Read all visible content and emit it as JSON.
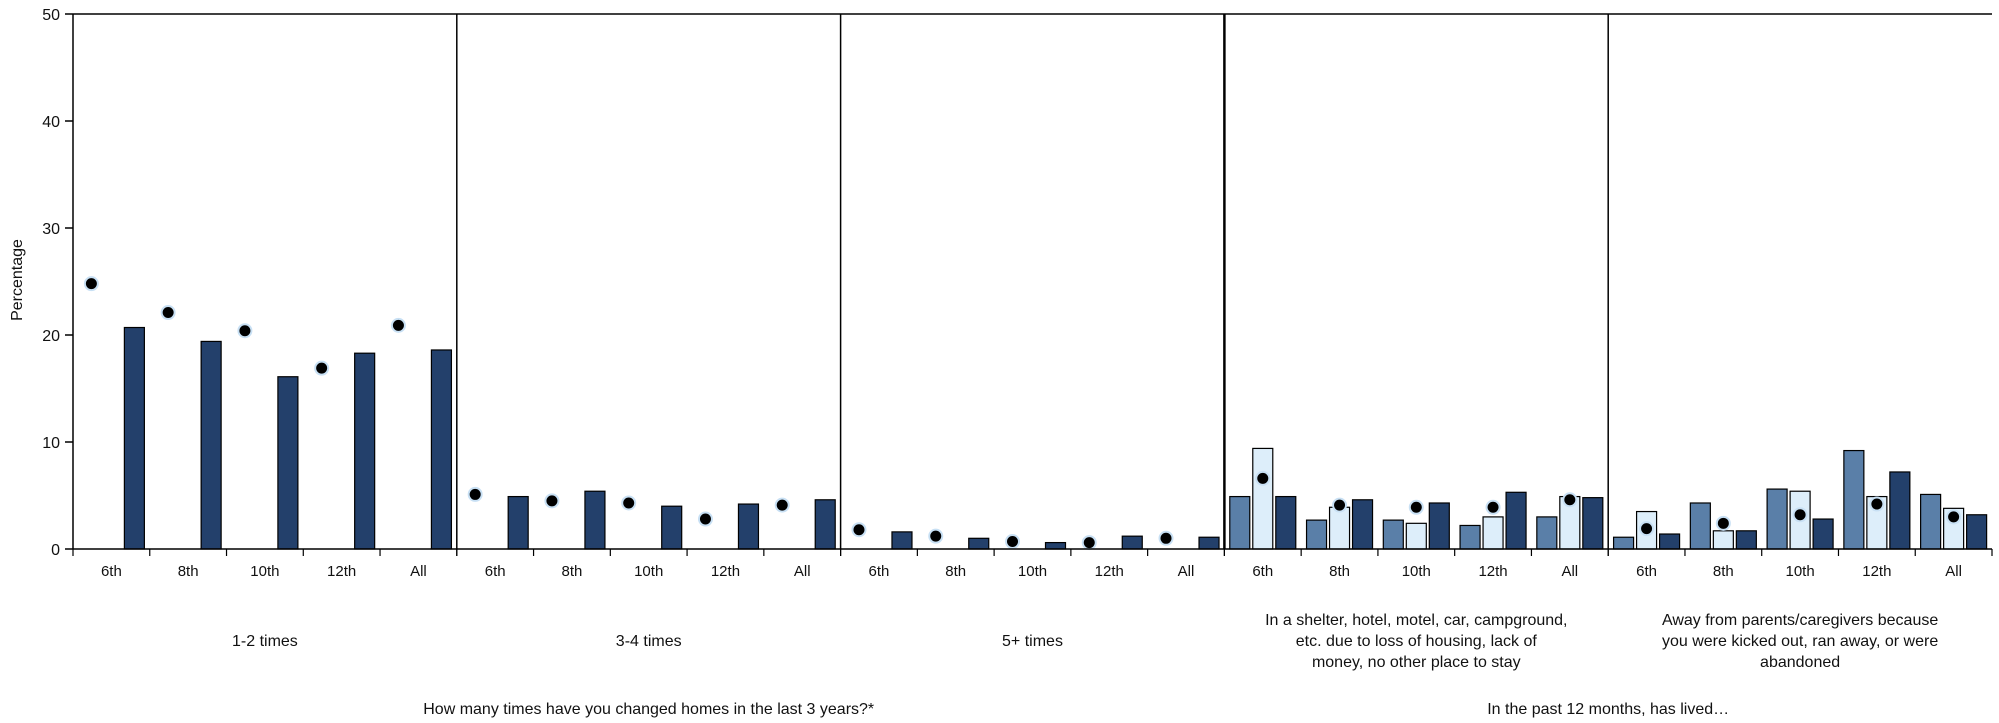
{
  "chart_data": {
    "type": "bar",
    "ylabel": "Percentage",
    "ylim": [
      0,
      50
    ],
    "yticks": [
      0,
      10,
      20,
      30,
      40,
      50
    ],
    "grid": false,
    "legend": "none",
    "dot_color": "#000000",
    "series": [
      {
        "color": "#5a7fa8"
      },
      {
        "color": "#ddeefa"
      },
      {
        "color": "#23406b"
      }
    ],
    "panels": [
      {
        "label": "1-2 times",
        "categories": [
          "6th",
          "8th",
          "10th",
          "12th",
          "All"
        ],
        "bars": [
          [
            null,
            null,
            20.7
          ],
          [
            null,
            null,
            19.4
          ],
          [
            null,
            null,
            16.1
          ],
          [
            null,
            null,
            18.3
          ],
          [
            null,
            null,
            18.6
          ]
        ],
        "dots": [
          24.8,
          22.1,
          20.4,
          16.9,
          20.9
        ]
      },
      {
        "label": "3-4 times",
        "categories": [
          "6th",
          "8th",
          "10th",
          "12th",
          "All"
        ],
        "bars": [
          [
            null,
            null,
            4.9
          ],
          [
            null,
            null,
            5.4
          ],
          [
            null,
            null,
            4.0
          ],
          [
            null,
            null,
            4.2
          ],
          [
            null,
            null,
            4.6
          ]
        ],
        "dots": [
          5.1,
          4.5,
          4.3,
          2.8,
          4.1
        ]
      },
      {
        "label": "5+ times",
        "categories": [
          "6th",
          "8th",
          "10th",
          "12th",
          "All"
        ],
        "bars": [
          [
            null,
            null,
            1.6
          ],
          [
            null,
            null,
            1.0
          ],
          [
            null,
            null,
            0.6
          ],
          [
            null,
            null,
            1.2
          ],
          [
            null,
            null,
            1.1
          ]
        ],
        "dots": [
          1.8,
          1.2,
          0.7,
          0.6,
          1.0
        ]
      },
      {
        "label": "In a shelter, hotel, motel, car, campground, etc. due to loss of housing, lack of money, no other place to stay",
        "label_lines": [
          "In a shelter, hotel, motel, car, campground,",
          "etc. due to loss of housing, lack of",
          "money, no other place to stay"
        ],
        "categories": [
          "6th",
          "8th",
          "10th",
          "12th",
          "All"
        ],
        "bars": [
          [
            4.9,
            9.4,
            4.9
          ],
          [
            2.7,
            3.9,
            4.6
          ],
          [
            2.7,
            2.4,
            4.3
          ],
          [
            2.2,
            3.0,
            5.3
          ],
          [
            3.0,
            4.9,
            4.8
          ]
        ],
        "dots": [
          6.6,
          4.1,
          3.9,
          3.9,
          4.6
        ]
      },
      {
        "label": "Away from parents/caregivers because you were kicked out, ran away, or were abandoned",
        "label_lines": [
          "Away from parents/caregivers because",
          "you were kicked out, ran away, or were",
          "abandoned"
        ],
        "categories": [
          "6th",
          "8th",
          "10th",
          "12th",
          "All"
        ],
        "bars": [
          [
            1.1,
            3.5,
            1.4
          ],
          [
            4.3,
            1.7,
            1.7
          ],
          [
            5.6,
            5.4,
            2.8
          ],
          [
            9.2,
            4.9,
            7.2
          ],
          [
            5.1,
            3.8,
            3.2
          ]
        ],
        "dots": [
          1.9,
          2.4,
          3.2,
          4.2,
          3.0
        ]
      }
    ],
    "group_labels": [
      {
        "text": "How many times have you changed homes in the last 3 years?*",
        "panels": [
          0,
          1,
          2
        ]
      },
      {
        "text": "In the past 12 months, has lived…",
        "panels": [
          3,
          4
        ]
      }
    ]
  }
}
